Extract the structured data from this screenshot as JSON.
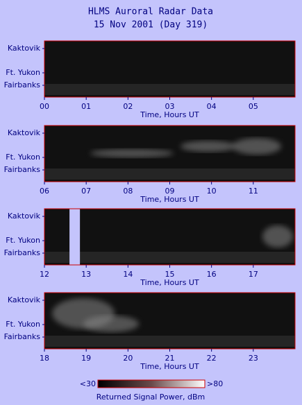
{
  "header": {
    "title": "HLMS Auroral Radar Data",
    "subtitle": "15 Nov 2001 (Day 319)"
  },
  "chart_data": [
    {
      "type": "heatmap",
      "xlabel": "Time, Hours UT",
      "categories": [
        "Kaktovik",
        "Ft. Yukon",
        "Fairbanks"
      ],
      "xlim": [
        0,
        6
      ],
      "xticks": [
        {
          "value": 0,
          "label": "00"
        },
        {
          "value": 1,
          "label": "01"
        },
        {
          "value": 2,
          "label": "02"
        },
        {
          "value": 3,
          "label": "03"
        },
        {
          "value": 4,
          "label": "04"
        },
        {
          "value": 5,
          "label": "05"
        }
      ]
    },
    {
      "type": "heatmap",
      "xlabel": "Time, Hours UT",
      "categories": [
        "Kaktovik",
        "Ft. Yukon",
        "Fairbanks"
      ],
      "xlim": [
        6,
        12
      ],
      "xticks": [
        {
          "value": 6,
          "label": "06"
        },
        {
          "value": 7,
          "label": "07"
        },
        {
          "value": 8,
          "label": "08"
        },
        {
          "value": 9,
          "label": "09"
        },
        10,
        11
      ]
    },
    {
      "type": "heatmap",
      "xlabel": "Time, Hours UT",
      "categories": [
        "Kaktovik",
        "Ft. Yukon",
        "Fairbanks"
      ],
      "xlim": [
        12,
        18
      ],
      "xticks": [
        12,
        13,
        14,
        15,
        16,
        17
      ],
      "gap": [
        12.6,
        12.85
      ]
    },
    {
      "type": "heatmap",
      "xlabel": "Time, Hours UT",
      "categories": [
        "Kaktovik",
        "Ft. Yukon",
        "Fairbanks"
      ],
      "xlim": [
        18,
        24
      ],
      "xticks": [
        18,
        19,
        20,
        21,
        22,
        23
      ]
    }
  ],
  "colorbar": {
    "min_label": "<30",
    "max_label": ">80",
    "label": "Returned Signal Power, dBm"
  }
}
